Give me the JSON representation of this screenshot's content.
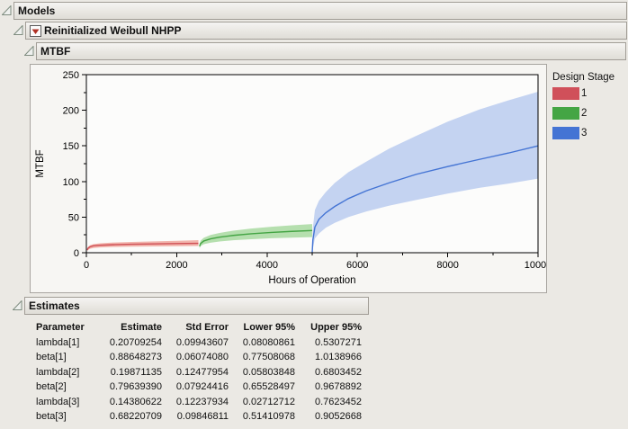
{
  "outline": {
    "models_title": "Models",
    "model_title": "Reinitialized Weibull NHPP",
    "mtbf_title": "MTBF",
    "estimates_title": "Estimates"
  },
  "legend": {
    "title": "Design Stage",
    "items": [
      {
        "label": "1",
        "color": "#d0505a"
      },
      {
        "label": "2",
        "color": "#44a544"
      },
      {
        "label": "3",
        "color": "#4474d4"
      }
    ]
  },
  "chart_data": {
    "type": "line",
    "title": "MTBF",
    "xlabel": "Hours of Operation",
    "ylabel": "MTBF",
    "xlim": [
      0,
      10000
    ],
    "ylim": [
      0,
      250
    ],
    "xticks": [
      0,
      2000,
      4000,
      6000,
      8000,
      10000
    ],
    "xminor": [
      1000,
      3000,
      5000,
      7000,
      9000
    ],
    "yticks": [
      0,
      50,
      100,
      150,
      200,
      250
    ],
    "yminor": [
      25,
      75,
      125,
      175,
      225
    ],
    "grid": false,
    "legend_position": "right",
    "series": [
      {
        "name": "design-stage-1",
        "label": "1",
        "color": "#cf4f55",
        "band_color": "#f2b5ad",
        "points_t_lower_mid_upper": [
          [
            20,
            2,
            4,
            6
          ],
          [
            40,
            4,
            6.5,
            8.5
          ],
          [
            80,
            5.5,
            8.2,
            10.5
          ],
          [
            150,
            6.5,
            9.7,
            12
          ],
          [
            300,
            7.4,
            10.5,
            13.2
          ],
          [
            600,
            8,
            11.2,
            14.3
          ],
          [
            1000,
            8.5,
            11.9,
            15.2
          ],
          [
            1500,
            8.9,
            12.4,
            16
          ],
          [
            2000,
            9.2,
            12.9,
            16.8
          ],
          [
            2480,
            9.5,
            13.2,
            17.6
          ]
        ]
      },
      {
        "name": "design-stage-2",
        "label": "2",
        "color": "#44a544",
        "band_color": "#b5dfae",
        "points_t_lower_mid_upper": [
          [
            2505,
            6,
            9,
            12
          ],
          [
            2530,
            9.5,
            13,
            17
          ],
          [
            2600,
            12,
            16.5,
            21
          ],
          [
            2750,
            14,
            19.5,
            25
          ],
          [
            2950,
            15.8,
            21.9,
            27.8
          ],
          [
            3250,
            17.5,
            24.3,
            31
          ],
          [
            3650,
            19,
            26.6,
            34
          ],
          [
            4100,
            20.3,
            28.5,
            36.5
          ],
          [
            4550,
            21.2,
            30,
            38.5
          ],
          [
            5000,
            21.9,
            31.2,
            40.3
          ]
        ]
      },
      {
        "name": "design-stage-3",
        "label": "3",
        "color": "#4474d4",
        "band_color": "#c4d3f1",
        "points_t_lower_mid_upper": [
          [
            5000,
            0,
            0,
            2
          ],
          [
            5015,
            6,
            18,
            35
          ],
          [
            5060,
            20,
            36,
            60
          ],
          [
            5150,
            27,
            47,
            73
          ],
          [
            5300,
            35,
            56,
            85
          ],
          [
            5500,
            42,
            65,
            98
          ],
          [
            5800,
            50,
            76,
            113
          ],
          [
            6200,
            58,
            87,
            128
          ],
          [
            6700,
            66,
            98,
            146
          ],
          [
            7300,
            74,
            110,
            164
          ],
          [
            8000,
            83,
            121,
            184
          ],
          [
            8700,
            91,
            131,
            201
          ],
          [
            9350,
            97,
            140,
            214
          ],
          [
            10000,
            104,
            150,
            226
          ]
        ]
      }
    ]
  },
  "estimates": {
    "columns": [
      "Parameter",
      "Estimate",
      "Std Error",
      "Lower 95%",
      "Upper 95%"
    ],
    "rows": [
      [
        "lambda[1]",
        "0.20709254",
        "0.09943607",
        "0.08080861",
        "0.5307271"
      ],
      [
        "beta[1]",
        "0.88648273",
        "0.06074080",
        "0.77508068",
        "1.0138966"
      ],
      [
        "lambda[2]",
        "0.19871135",
        "0.12477954",
        "0.05803848",
        "0.6803452"
      ],
      [
        "beta[2]",
        "0.79639390",
        "0.07924416",
        "0.65528497",
        "0.9678892"
      ],
      [
        "lambda[3]",
        "0.14380622",
        "0.12237934",
        "0.02712712",
        "0.7623452"
      ],
      [
        "beta[3]",
        "0.68220709",
        "0.09846811",
        "0.51410978",
        "0.9052668"
      ]
    ]
  },
  "icons": {
    "disclosure_open": "triangle-open-lower-right",
    "model_menu": "red-triangle-down"
  },
  "colors": {
    "page_bg": "#ebe9e4",
    "header_band_bg": "#e9e7e2",
    "chart_outer_bg": "#f7f6f3",
    "plot_bg": "#fcfcfb",
    "menu_triangle_red": "#b03226"
  }
}
